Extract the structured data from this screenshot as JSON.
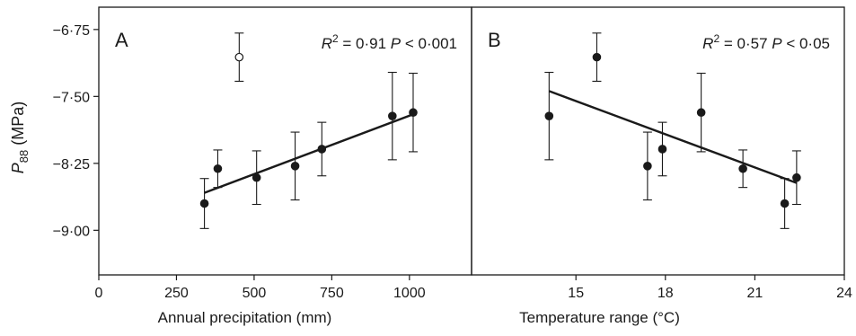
{
  "y_axis_label": {
    "main": "P",
    "sub": "88",
    "unit": " (MPa)"
  },
  "chart_data": [
    {
      "type": "scatter",
      "panel_label": "A",
      "stat_text": {
        "r_letter": "R",
        "r_exp": "2",
        "r_value": " = 0·91 ",
        "p_letter": "P",
        "p_value": " < 0·001"
      },
      "xlabel": "Annual precipitation (mm)",
      "ylabel": "P88 (MPa)",
      "xlim": [
        0,
        1200
      ],
      "ylim": [
        -9.5,
        -6.5
      ],
      "xticks": [
        0,
        250,
        500,
        750,
        1000
      ],
      "xtick_labels": [
        "0",
        "250",
        "500",
        "750",
        "1000"
      ],
      "yticks": [
        -6.75,
        -7.5,
        -8.25,
        -9.0
      ],
      "ytick_labels": [
        "−6·75",
        "−7·50",
        "−8·25",
        "−9·00"
      ],
      "points": [
        {
          "x": 340,
          "y": -8.7,
          "err": 0.28,
          "filled": true
        },
        {
          "x": 383,
          "y": -8.31,
          "err": 0.21,
          "filled": true
        },
        {
          "x": 508,
          "y": -8.41,
          "err": 0.3,
          "filled": true
        },
        {
          "x": 632,
          "y": -8.28,
          "err": 0.38,
          "filled": true
        },
        {
          "x": 718,
          "y": -8.09,
          "err": 0.3,
          "filled": true
        },
        {
          "x": 945,
          "y": -7.72,
          "err": 0.49,
          "filled": true
        },
        {
          "x": 1012,
          "y": -7.68,
          "err": 0.44,
          "filled": true
        },
        {
          "x": 452,
          "y": -7.06,
          "err": 0.27,
          "filled": false
        }
      ],
      "trendline": {
        "x": [
          340,
          1012
        ],
        "y": [
          -8.58,
          -7.7
        ]
      }
    },
    {
      "type": "scatter",
      "panel_label": "B",
      "stat_text": {
        "r_letter": "R",
        "r_exp": "2",
        "r_value": " = 0·57 ",
        "p_letter": "P",
        "p_value": " < 0·05"
      },
      "xlabel": "Temperature range (°C)",
      "xlim": [
        11.5,
        24
      ],
      "ylim": [
        -9.5,
        -6.5
      ],
      "xticks": [
        15,
        18,
        21,
        24
      ],
      "xtick_labels": [
        "15",
        "18",
        "21",
        "24"
      ],
      "points": [
        {
          "x": 14.1,
          "y": -7.72,
          "err": 0.49,
          "filled": true
        },
        {
          "x": 15.7,
          "y": -7.06,
          "err": 0.27,
          "filled": true
        },
        {
          "x": 17.4,
          "y": -8.28,
          "err": 0.38,
          "filled": true
        },
        {
          "x": 17.9,
          "y": -8.09,
          "err": 0.3,
          "filled": true
        },
        {
          "x": 19.2,
          "y": -7.68,
          "err": 0.44,
          "filled": true
        },
        {
          "x": 20.6,
          "y": -8.31,
          "err": 0.21,
          "filled": true
        },
        {
          "x": 22.0,
          "y": -8.7,
          "err": 0.28,
          "filled": true
        },
        {
          "x": 22.4,
          "y": -8.41,
          "err": 0.3,
          "filled": true
        }
      ],
      "trendline": {
        "x": [
          14.1,
          22.4
        ],
        "y": [
          -7.44,
          -8.47
        ]
      }
    }
  ]
}
